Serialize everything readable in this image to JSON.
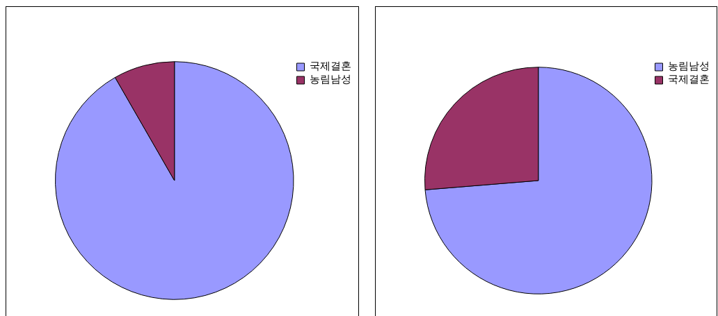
{
  "chart_data": [
    {
      "type": "pie",
      "categories": [
        "국제결혼",
        "농림남성"
      ],
      "values": [
        91.7,
        8.3
      ],
      "colors": [
        "#9999ff",
        "#993366"
      ],
      "legend": "top right"
    },
    {
      "type": "pie",
      "categories": [
        "농림남성",
        "국제결혼"
      ],
      "values": [
        73.7,
        26.3
      ],
      "colors": [
        "#9999ff",
        "#993366"
      ],
      "legend": "top right"
    }
  ]
}
